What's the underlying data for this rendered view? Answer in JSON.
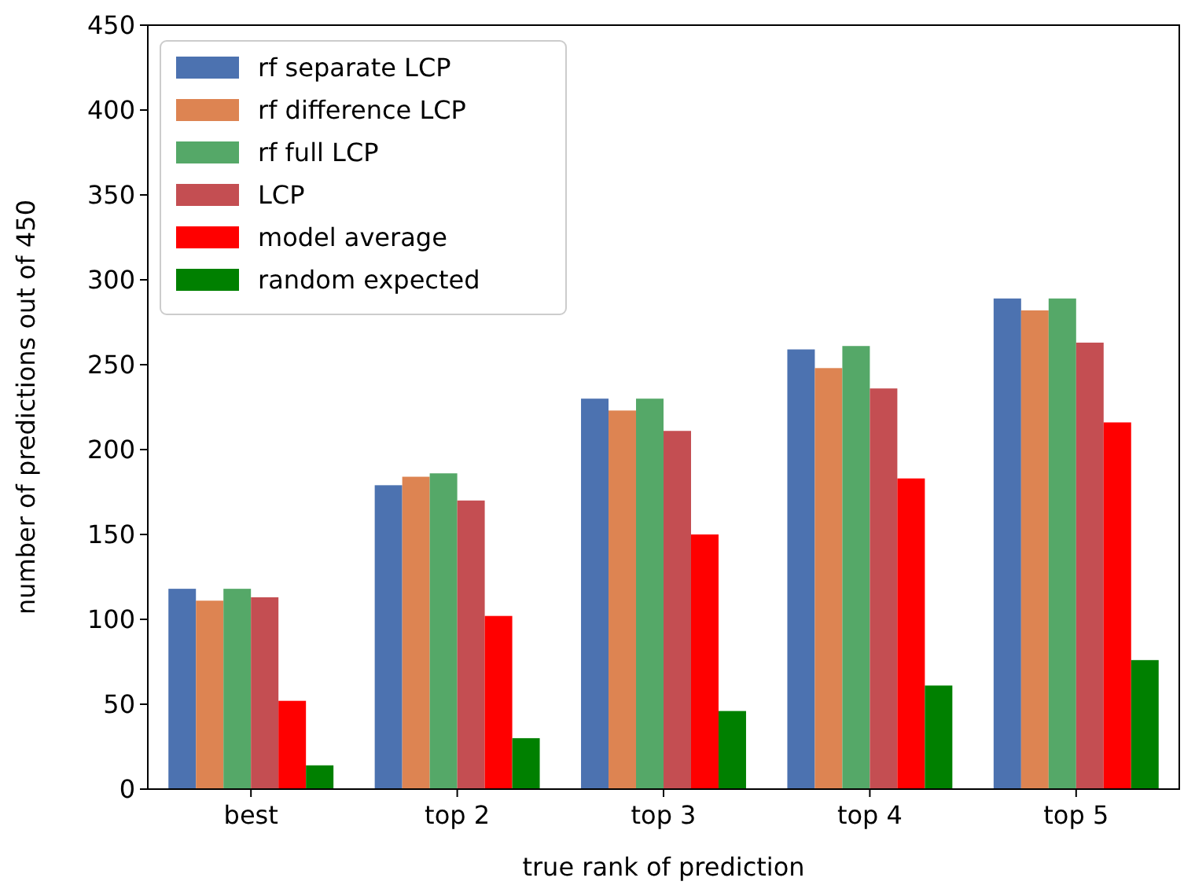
{
  "chart_data": {
    "type": "bar",
    "xlabel": "true rank of prediction",
    "ylabel": "number of predictions out of 450",
    "categories": [
      "best",
      "top 2",
      "top 3",
      "top 4",
      "top 5"
    ],
    "series": [
      {
        "name": "rf separate LCP",
        "color": "#4c72b0",
        "values": [
          118,
          179,
          230,
          259,
          289
        ]
      },
      {
        "name": "rf difference LCP",
        "color": "#dd8452",
        "values": [
          111,
          184,
          223,
          248,
          282
        ]
      },
      {
        "name": "rf full LCP",
        "color": "#55a868",
        "values": [
          118,
          186,
          230,
          261,
          289
        ]
      },
      {
        "name": "LCP",
        "color": "#c44e52",
        "values": [
          113,
          170,
          211,
          236,
          263
        ]
      },
      {
        "name": "model average",
        "color": "#ff0000",
        "values": [
          52,
          102,
          150,
          183,
          216
        ]
      },
      {
        "name": "random expected",
        "color": "#008000",
        "values": [
          14,
          30,
          46,
          61,
          76
        ]
      }
    ],
    "ylim": [
      0,
      450
    ],
    "yticks": [
      0,
      50,
      100,
      150,
      200,
      250,
      300,
      350,
      400,
      450
    ],
    "legend": "top left"
  }
}
